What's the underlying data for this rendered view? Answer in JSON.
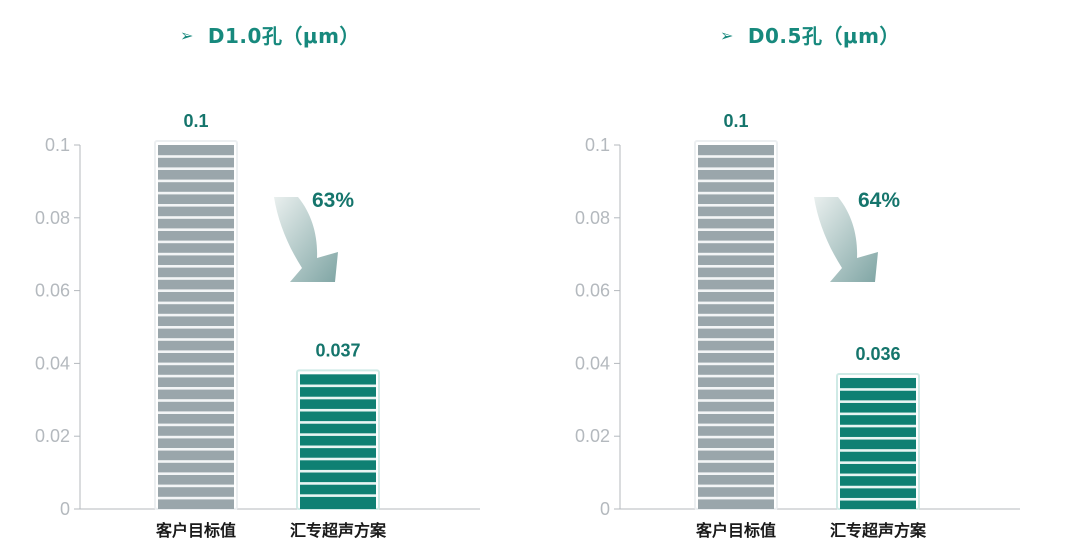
{
  "colors": {
    "title": "#17897d",
    "target_bar": "#9aa6ab",
    "solution_bar": "#0f8073",
    "value_label": "#15756c",
    "axis": "#b4b9be",
    "arrow_from": "#e9efee",
    "arrow_to": "#7fa5a4"
  },
  "chart_data": [
    {
      "type": "bar",
      "title": "D1.0孔（μm）",
      "categories": [
        "客户目标值",
        "汇专超声方案"
      ],
      "values": [
        0.1,
        0.037
      ],
      "value_labels": [
        "0.1",
        "0.037"
      ],
      "reduction_label": "63%",
      "yticks": [
        "0",
        "0.02",
        "0.04",
        "0.06",
        "0.08",
        "0.1"
      ],
      "ylim": [
        0,
        0.1
      ],
      "grid": false,
      "xlabel": "",
      "ylabel": ""
    },
    {
      "type": "bar",
      "title": "D0.5孔（μm）",
      "categories": [
        "客户目标值",
        "汇专超声方案"
      ],
      "values": [
        0.1,
        0.036
      ],
      "value_labels": [
        "0.1",
        "0.036"
      ],
      "reduction_label": "64%",
      "yticks": [
        "0",
        "0.02",
        "0.04",
        "0.06",
        "0.08",
        "0.1"
      ],
      "ylim": [
        0,
        0.1
      ],
      "grid": false,
      "xlabel": "",
      "ylabel": ""
    }
  ]
}
